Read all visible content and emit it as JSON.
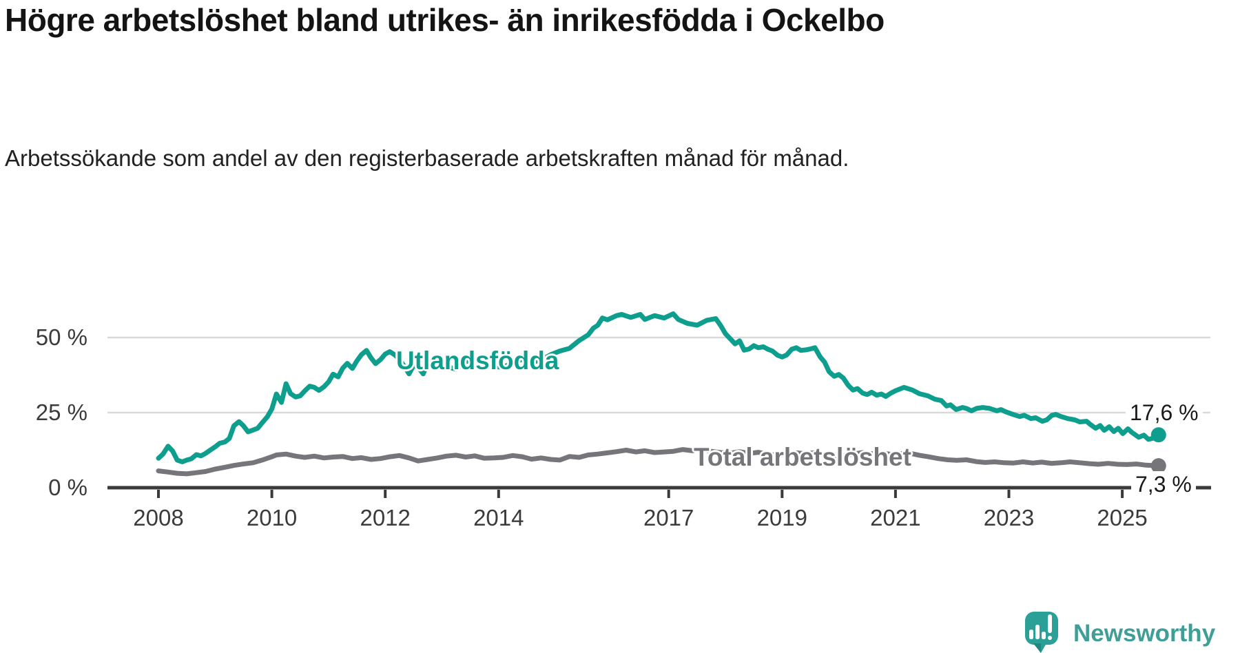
{
  "chart_data": {
    "type": "line",
    "title": "Högre arbetslöshet bland utrikes- än inrikesfödda i Ockelbo",
    "subtitle": "Arbetssökande som andel av den registerbaserade arbetskraften månad för månad.",
    "unit": "%",
    "grid": true,
    "legend_position": "inline-labels-on-lines",
    "x_axis": {
      "min": 2008,
      "max": 2025.9,
      "ticks": [
        2008,
        2010,
        2012,
        2014,
        2017,
        2019,
        2021,
        2023,
        2025
      ]
    },
    "y_axis": {
      "min": 0,
      "max": 60,
      "ticks": [
        {
          "value": 0,
          "label": "0 %"
        },
        {
          "value": 25,
          "label": "25 %"
        },
        {
          "value": 50,
          "label": "50 %"
        }
      ]
    },
    "colors": {
      "grid": "#d9d9d9",
      "axis": "#3a3a3a",
      "axis_text": "#3b3b3b",
      "title_text": "#141414"
    },
    "series": [
      {
        "name": "Utlandsfödda",
        "color": "#0d9e8e",
        "end_label": "17,6 %",
        "end_value": 17.6,
        "points": [
          [
            2008.0,
            9.8
          ],
          [
            2008.08,
            11.2
          ],
          [
            2008.17,
            13.8
          ],
          [
            2008.25,
            12.2
          ],
          [
            2008.33,
            9.2
          ],
          [
            2008.42,
            8.6
          ],
          [
            2008.5,
            9.2
          ],
          [
            2008.58,
            9.6
          ],
          [
            2008.67,
            11.0
          ],
          [
            2008.75,
            10.6
          ],
          [
            2008.83,
            11.4
          ],
          [
            2008.92,
            12.6
          ],
          [
            2009.0,
            13.6
          ],
          [
            2009.08,
            14.8
          ],
          [
            2009.17,
            15.2
          ],
          [
            2009.25,
            16.4
          ],
          [
            2009.33,
            20.6
          ],
          [
            2009.42,
            22.0
          ],
          [
            2009.5,
            20.6
          ],
          [
            2009.58,
            18.6
          ],
          [
            2009.67,
            19.2
          ],
          [
            2009.75,
            19.8
          ],
          [
            2009.83,
            21.6
          ],
          [
            2009.92,
            23.6
          ],
          [
            2010.0,
            26.2
          ],
          [
            2010.08,
            31.2
          ],
          [
            2010.17,
            28.4
          ],
          [
            2010.25,
            34.6
          ],
          [
            2010.33,
            31.3
          ],
          [
            2010.42,
            30.2
          ],
          [
            2010.5,
            30.6
          ],
          [
            2010.58,
            32.2
          ],
          [
            2010.67,
            33.8
          ],
          [
            2010.75,
            33.4
          ],
          [
            2010.83,
            32.4
          ],
          [
            2010.92,
            33.6
          ],
          [
            2011.0,
            35.2
          ],
          [
            2011.08,
            37.8
          ],
          [
            2011.17,
            36.9
          ],
          [
            2011.25,
            39.8
          ],
          [
            2011.33,
            41.4
          ],
          [
            2011.42,
            39.7
          ],
          [
            2011.5,
            42.2
          ],
          [
            2011.58,
            44.3
          ],
          [
            2011.67,
            45.7
          ],
          [
            2011.75,
            43.2
          ],
          [
            2011.83,
            41.3
          ],
          [
            2011.92,
            42.7
          ],
          [
            2012.0,
            44.5
          ],
          [
            2012.08,
            45.3
          ],
          [
            2012.17,
            44.2
          ],
          [
            2012.25,
            42.7
          ],
          [
            2012.33,
            40.6
          ],
          [
            2012.42,
            37.9
          ],
          [
            2012.5,
            40.7
          ],
          [
            2012.58,
            40.1
          ],
          [
            2012.67,
            37.9
          ],
          [
            2012.75,
            41.6
          ],
          [
            2012.83,
            42.1
          ],
          [
            2012.92,
            42.4
          ],
          [
            2013.08,
            40.3
          ],
          [
            2013.25,
            39.5
          ],
          [
            2013.42,
            41.9
          ],
          [
            2013.58,
            42.7
          ],
          [
            2013.75,
            41.1
          ],
          [
            2013.92,
            40.3
          ],
          [
            2014.08,
            40.1
          ],
          [
            2014.25,
            41.7
          ],
          [
            2014.42,
            42.7
          ],
          [
            2014.58,
            41.7
          ],
          [
            2014.75,
            42.5
          ],
          [
            2014.92,
            44.3
          ],
          [
            2015.08,
            45.5
          ],
          [
            2015.25,
            46.4
          ],
          [
            2015.42,
            49.0
          ],
          [
            2015.58,
            50.9
          ],
          [
            2015.67,
            53.1
          ],
          [
            2015.75,
            54.1
          ],
          [
            2015.83,
            56.5
          ],
          [
            2015.92,
            55.9
          ],
          [
            2016.08,
            57.3
          ],
          [
            2016.17,
            57.7
          ],
          [
            2016.33,
            56.7
          ],
          [
            2016.5,
            57.7
          ],
          [
            2016.58,
            56.0
          ],
          [
            2016.75,
            57.3
          ],
          [
            2016.92,
            56.5
          ],
          [
            2017.08,
            57.9
          ],
          [
            2017.17,
            56.0
          ],
          [
            2017.33,
            54.7
          ],
          [
            2017.5,
            54.1
          ],
          [
            2017.67,
            55.7
          ],
          [
            2017.83,
            56.3
          ],
          [
            2017.92,
            53.9
          ],
          [
            2018.0,
            51.3
          ],
          [
            2018.08,
            49.7
          ],
          [
            2018.17,
            47.9
          ],
          [
            2018.25,
            48.9
          ],
          [
            2018.33,
            45.8
          ],
          [
            2018.42,
            46.2
          ],
          [
            2018.5,
            47.3
          ],
          [
            2018.58,
            46.6
          ],
          [
            2018.67,
            46.9
          ],
          [
            2018.75,
            46.1
          ],
          [
            2018.83,
            45.5
          ],
          [
            2018.92,
            44.1
          ],
          [
            2019.0,
            43.5
          ],
          [
            2019.08,
            44.2
          ],
          [
            2019.17,
            46.1
          ],
          [
            2019.25,
            46.6
          ],
          [
            2019.33,
            45.7
          ],
          [
            2019.42,
            45.9
          ],
          [
            2019.5,
            46.2
          ],
          [
            2019.58,
            46.6
          ],
          [
            2019.67,
            43.6
          ],
          [
            2019.75,
            41.8
          ],
          [
            2019.83,
            38.6
          ],
          [
            2019.92,
            37.1
          ],
          [
            2020.0,
            37.7
          ],
          [
            2020.08,
            36.5
          ],
          [
            2020.17,
            34.0
          ],
          [
            2020.25,
            32.5
          ],
          [
            2020.33,
            33.0
          ],
          [
            2020.42,
            31.5
          ],
          [
            2020.5,
            31.0
          ],
          [
            2020.58,
            31.8
          ],
          [
            2020.67,
            30.8
          ],
          [
            2020.75,
            31.2
          ],
          [
            2020.83,
            30.4
          ],
          [
            2020.92,
            31.5
          ],
          [
            2021.0,
            32.3
          ],
          [
            2021.15,
            33.4
          ],
          [
            2021.3,
            32.5
          ],
          [
            2021.42,
            31.3
          ],
          [
            2021.57,
            30.6
          ],
          [
            2021.69,
            29.5
          ],
          [
            2021.81,
            29.0
          ],
          [
            2021.9,
            27.2
          ],
          [
            2021.97,
            27.6
          ],
          [
            2022.07,
            26.0
          ],
          [
            2022.18,
            26.7
          ],
          [
            2022.25,
            26.4
          ],
          [
            2022.34,
            25.6
          ],
          [
            2022.43,
            26.4
          ],
          [
            2022.54,
            26.7
          ],
          [
            2022.66,
            26.4
          ],
          [
            2022.79,
            25.6
          ],
          [
            2022.86,
            26.0
          ],
          [
            2022.94,
            25.3
          ],
          [
            2023.07,
            24.4
          ],
          [
            2023.19,
            23.7
          ],
          [
            2023.27,
            24.1
          ],
          [
            2023.39,
            23.0
          ],
          [
            2023.47,
            23.3
          ],
          [
            2023.59,
            22.1
          ],
          [
            2023.67,
            22.6
          ],
          [
            2023.76,
            24.1
          ],
          [
            2023.83,
            24.4
          ],
          [
            2023.92,
            23.7
          ],
          [
            2024.04,
            23.0
          ],
          [
            2024.16,
            22.6
          ],
          [
            2024.25,
            21.9
          ],
          [
            2024.37,
            22.1
          ],
          [
            2024.44,
            21.0
          ],
          [
            2024.53,
            19.8
          ],
          [
            2024.61,
            20.7
          ],
          [
            2024.68,
            19.1
          ],
          [
            2024.77,
            20.3
          ],
          [
            2024.85,
            18.7
          ],
          [
            2024.93,
            19.8
          ],
          [
            2025.01,
            18.0
          ],
          [
            2025.1,
            19.6
          ],
          [
            2025.17,
            18.4
          ],
          [
            2025.29,
            16.8
          ],
          [
            2025.38,
            17.5
          ],
          [
            2025.46,
            16.1
          ],
          [
            2025.53,
            16.4
          ],
          [
            2025.64,
            17.6
          ]
        ]
      },
      {
        "name": "Total arbetslöshet",
        "color": "#76767a",
        "end_label": "7,3 %",
        "end_value": 7.3,
        "points": [
          [
            2008.0,
            5.6
          ],
          [
            2008.17,
            5.2
          ],
          [
            2008.33,
            4.8
          ],
          [
            2008.5,
            4.6
          ],
          [
            2008.67,
            5.0
          ],
          [
            2008.83,
            5.4
          ],
          [
            2009.0,
            6.2
          ],
          [
            2009.17,
            6.8
          ],
          [
            2009.33,
            7.4
          ],
          [
            2009.5,
            7.9
          ],
          [
            2009.67,
            8.3
          ],
          [
            2009.83,
            9.2
          ],
          [
            2010.0,
            10.3
          ],
          [
            2010.08,
            10.9
          ],
          [
            2010.25,
            11.2
          ],
          [
            2010.42,
            10.5
          ],
          [
            2010.58,
            10.1
          ],
          [
            2010.75,
            10.5
          ],
          [
            2010.92,
            9.9
          ],
          [
            2011.08,
            10.2
          ],
          [
            2011.25,
            10.4
          ],
          [
            2011.42,
            9.7
          ],
          [
            2011.58,
            10.0
          ],
          [
            2011.75,
            9.4
          ],
          [
            2011.92,
            9.7
          ],
          [
            2012.08,
            10.3
          ],
          [
            2012.25,
            10.7
          ],
          [
            2012.42,
            9.9
          ],
          [
            2012.58,
            8.9
          ],
          [
            2012.75,
            9.4
          ],
          [
            2012.92,
            9.9
          ],
          [
            2013.08,
            10.5
          ],
          [
            2013.25,
            10.8
          ],
          [
            2013.42,
            10.2
          ],
          [
            2013.58,
            10.6
          ],
          [
            2013.75,
            9.8
          ],
          [
            2013.92,
            9.9
          ],
          [
            2014.08,
            10.1
          ],
          [
            2014.25,
            10.7
          ],
          [
            2014.42,
            10.3
          ],
          [
            2014.58,
            9.5
          ],
          [
            2014.75,
            9.9
          ],
          [
            2014.92,
            9.4
          ],
          [
            2015.08,
            9.2
          ],
          [
            2015.25,
            10.4
          ],
          [
            2015.42,
            10.1
          ],
          [
            2015.58,
            10.9
          ],
          [
            2015.75,
            11.2
          ],
          [
            2015.92,
            11.6
          ],
          [
            2016.08,
            12.0
          ],
          [
            2016.25,
            12.5
          ],
          [
            2016.42,
            11.9
          ],
          [
            2016.58,
            12.3
          ],
          [
            2016.75,
            11.7
          ],
          [
            2016.92,
            11.9
          ],
          [
            2017.08,
            12.1
          ],
          [
            2017.25,
            12.7
          ],
          [
            2017.42,
            12.3
          ],
          [
            2017.58,
            12.6
          ],
          [
            2017.75,
            12.1
          ],
          [
            2017.92,
            11.7
          ],
          [
            2018.08,
            11.5
          ],
          [
            2018.25,
            12.0
          ],
          [
            2018.42,
            11.4
          ],
          [
            2018.58,
            11.8
          ],
          [
            2018.75,
            11.1
          ],
          [
            2018.92,
            10.9
          ],
          [
            2019.08,
            11.0
          ],
          [
            2019.25,
            11.6
          ],
          [
            2019.42,
            11.3
          ],
          [
            2019.58,
            11.7
          ],
          [
            2019.75,
            11.0
          ],
          [
            2019.92,
            10.5
          ],
          [
            2020.08,
            10.6
          ],
          [
            2020.25,
            11.2
          ],
          [
            2020.42,
            11.7
          ],
          [
            2020.58,
            11.3
          ],
          [
            2020.75,
            11.6
          ],
          [
            2020.92,
            11.1
          ],
          [
            2021.08,
            11.3
          ],
          [
            2021.25,
            11.5
          ],
          [
            2021.42,
            10.8
          ],
          [
            2021.58,
            10.3
          ],
          [
            2021.75,
            9.7
          ],
          [
            2021.92,
            9.3
          ],
          [
            2022.08,
            9.1
          ],
          [
            2022.25,
            9.3
          ],
          [
            2022.42,
            8.7
          ],
          [
            2022.58,
            8.4
          ],
          [
            2022.75,
            8.6
          ],
          [
            2022.92,
            8.3
          ],
          [
            2023.08,
            8.2
          ],
          [
            2023.25,
            8.6
          ],
          [
            2023.42,
            8.2
          ],
          [
            2023.58,
            8.5
          ],
          [
            2023.75,
            8.1
          ],
          [
            2023.92,
            8.3
          ],
          [
            2024.08,
            8.6
          ],
          [
            2024.25,
            8.3
          ],
          [
            2024.42,
            8.0
          ],
          [
            2024.58,
            7.8
          ],
          [
            2024.75,
            8.1
          ],
          [
            2024.92,
            7.8
          ],
          [
            2025.08,
            7.7
          ],
          [
            2025.25,
            7.9
          ],
          [
            2025.42,
            7.5
          ],
          [
            2025.64,
            7.3
          ]
        ]
      }
    ]
  },
  "logo": {
    "text": "Newsworthy",
    "color": "#3f9e95",
    "mark_color": "#2aa096",
    "icon": "newsworthy-speech-bubble-bar-chart"
  }
}
